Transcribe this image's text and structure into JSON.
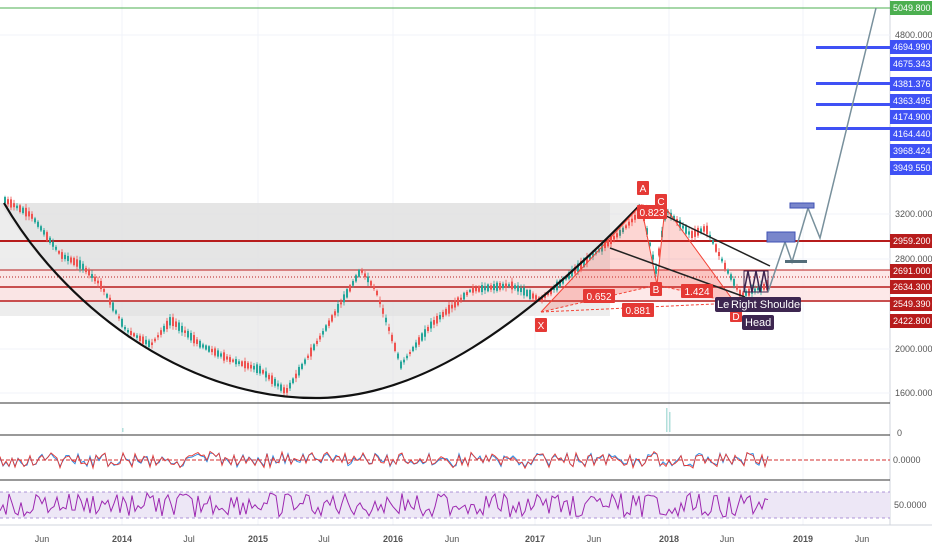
{
  "price_axis": {
    "ticks": [
      "4800.000",
      "3200.000",
      "2800.000",
      "2000.000",
      "1600.000"
    ],
    "labels": [
      {
        "text": "5049.800",
        "style": "green"
      },
      {
        "text": "4694.990",
        "style": "blue"
      },
      {
        "text": "4675.343",
        "style": "blue"
      },
      {
        "text": "4381.376",
        "style": "blue"
      },
      {
        "text": "4363.495",
        "style": "blue"
      },
      {
        "text": "4174.900",
        "style": "blue"
      },
      {
        "text": "4164.440",
        "style": "blue"
      },
      {
        "text": "3968.424",
        "style": "blue"
      },
      {
        "text": "3949.550",
        "style": "blue"
      },
      {
        "text": "2959.200",
        "style": "darkred"
      },
      {
        "text": "2691.000",
        "style": "darkred"
      },
      {
        "text": "2634.300",
        "style": "darkred"
      },
      {
        "text": "2549.390",
        "style": "darkred"
      },
      {
        "text": "2422.800",
        "style": "darkred"
      }
    ]
  },
  "pattern_labels": {
    "point_x": "X",
    "point_a": "A",
    "point_b": "B",
    "point_c": "C",
    "point_d": "D",
    "ratio_xb": "0.652",
    "ratio_ac": "0.823",
    "ratio_bd": "1.424",
    "ratio_xd": "0.881",
    "left_shoulder": "Le",
    "right_shoulder": "Right Shoulder",
    "head": "Head"
  },
  "volume_axis": {
    "tick": "0"
  },
  "oscillator_axis": {
    "tick": "0.0000"
  },
  "rsi_axis": {
    "tick": "50.0000"
  },
  "time_axis": {
    "labels": [
      "Jun",
      "2014",
      "Jul",
      "2015",
      "Jul",
      "2016",
      "Jun",
      "2017",
      "Jun",
      "2018",
      "Jun",
      "2019",
      "Jun"
    ]
  },
  "colors": {
    "green_line": "#4caf50",
    "blue_level": "#3f51f5",
    "dark_red": "#b71c1c",
    "pattern_red": "#f44336",
    "up_candle": "#26a69a",
    "down_candle": "#ef5350",
    "projection": "#78909c",
    "rsi": "#9c27b0"
  }
}
